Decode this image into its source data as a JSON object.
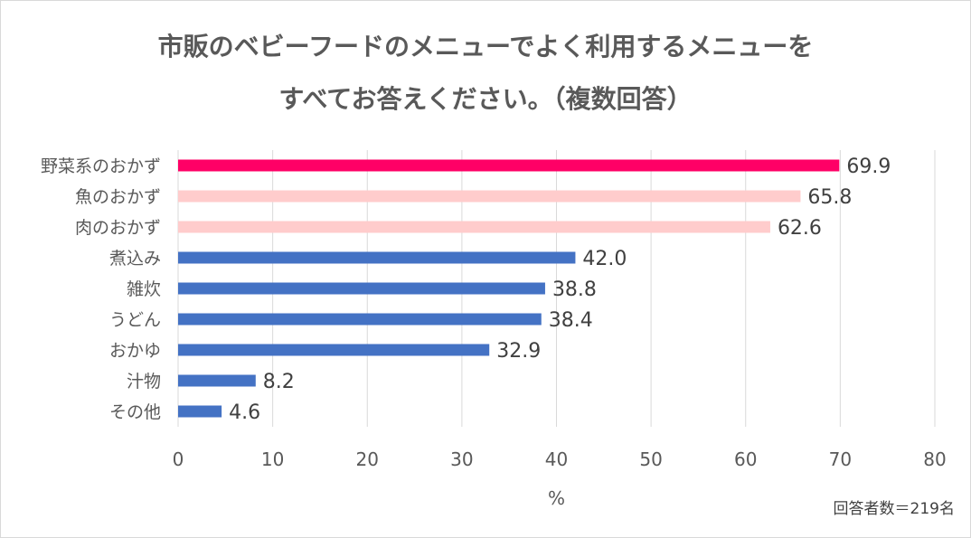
{
  "chart_data": {
    "type": "bar",
    "orientation": "horizontal",
    "title_lines": [
      "市販のベビーフードのメニューでよく利用するメニューを",
      "すべてお答えください。（複数回答）"
    ],
    "categories": [
      "野菜系のおかず",
      "魚のおかず",
      "肉のおかず",
      "煮込み",
      "雑炊",
      "うどん",
      "おかゆ",
      "汁物",
      "その他"
    ],
    "values": [
      69.9,
      65.8,
      62.6,
      42.0,
      38.8,
      38.4,
      32.9,
      8.2,
      4.6
    ],
    "data_labels": [
      "69.9",
      "65.8",
      "62.6",
      "42.0",
      "38.8",
      "38.4",
      "32.9",
      "8.2",
      "4.6"
    ],
    "bar_colors": [
      "#FF0066",
      "#FFCCCC",
      "#FFCCCC",
      "#4472C4",
      "#4472C4",
      "#4472C4",
      "#4472C4",
      "#4472C4",
      "#4472C4"
    ],
    "xlabel": "%",
    "ylabel": "",
    "xlim": [
      0,
      80
    ],
    "xticks": [
      "0",
      "10",
      "20",
      "30",
      "40",
      "50",
      "60",
      "70",
      "80"
    ],
    "grid": true,
    "legend": "none"
  },
  "footnote": "回答者数＝219名"
}
